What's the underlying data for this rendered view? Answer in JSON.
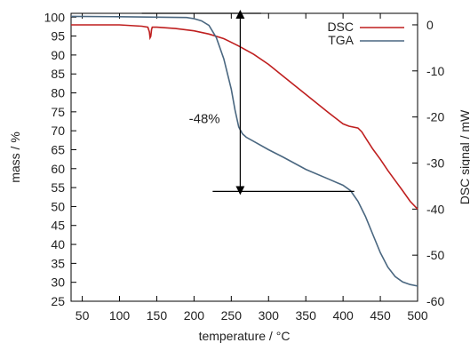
{
  "chart_data": {
    "type": "line",
    "title": "",
    "xlabel": "temperature / °C",
    "ylabel": "mass / %",
    "y2label": "DSC signal / mW",
    "xlim": [
      35,
      500
    ],
    "ylim": [
      25,
      101
    ],
    "y2lim": [
      -60,
      2.5
    ],
    "x_ticks": [
      50,
      100,
      150,
      200,
      250,
      300,
      350,
      400,
      450,
      500
    ],
    "y_ticks": [
      25,
      30,
      35,
      40,
      45,
      50,
      55,
      60,
      65,
      70,
      75,
      80,
      85,
      90,
      95,
      100
    ],
    "y2_ticks": [
      0,
      -10,
      -20,
      -30,
      -40,
      -50,
      -60
    ],
    "grid": false,
    "legend_position": "top-right",
    "series": [
      {
        "name": "DSC",
        "axis": "right",
        "color": "#bf1f1f",
        "x": [
          35,
          60,
          100,
          130,
          138,
          140,
          141,
          142,
          143,
          144,
          146,
          150,
          175,
          200,
          220,
          240,
          260,
          280,
          300,
          320,
          340,
          360,
          380,
          400,
          408,
          420,
          425,
          432,
          440,
          450,
          460,
          470,
          480,
          490,
          500
        ],
        "values": [
          0.0,
          0.0,
          0.0,
          -0.3,
          -0.5,
          -1.5,
          -2.8,
          -2.5,
          -1.0,
          -0.5,
          -0.5,
          -0.5,
          -0.8,
          -1.3,
          -2.0,
          -3.0,
          -4.6,
          -6.4,
          -8.6,
          -11.2,
          -13.8,
          -16.4,
          -19.0,
          -21.5,
          -22.0,
          -22.4,
          -23.2,
          -25.0,
          -27.0,
          -29.2,
          -31.6,
          -33.8,
          -36.0,
          -38.3,
          -40.0
        ]
      },
      {
        "name": "TGA",
        "axis": "left",
        "color": "#4a6780",
        "x": [
          35,
          100,
          150,
          190,
          200,
          210,
          220,
          230,
          240,
          250,
          255,
          260,
          265,
          270,
          280,
          300,
          320,
          350,
          380,
          400,
          410,
          420,
          430,
          440,
          450,
          460,
          470,
          480,
          490,
          500
        ],
        "values": [
          100.2,
          100.1,
          100.0,
          99.9,
          99.6,
          99.0,
          97.8,
          94.6,
          89.0,
          81.0,
          75.5,
          71.0,
          69.2,
          68.3,
          67.2,
          65.0,
          63.0,
          59.8,
          57.3,
          55.6,
          54.2,
          51.4,
          47.4,
          42.6,
          37.8,
          34.0,
          31.5,
          30.1,
          29.4,
          29.0
        ]
      }
    ],
    "annotations": {
      "text": "-48%",
      "text_pos": [
        214,
        72
      ],
      "upper_line_y": 101,
      "upper_line_x": [
        130,
        290
      ],
      "lower_line_y": 54,
      "lower_line_x": [
        225,
        415
      ],
      "arrow_x": 262,
      "arrow_y_range": [
        101,
        54
      ]
    }
  }
}
